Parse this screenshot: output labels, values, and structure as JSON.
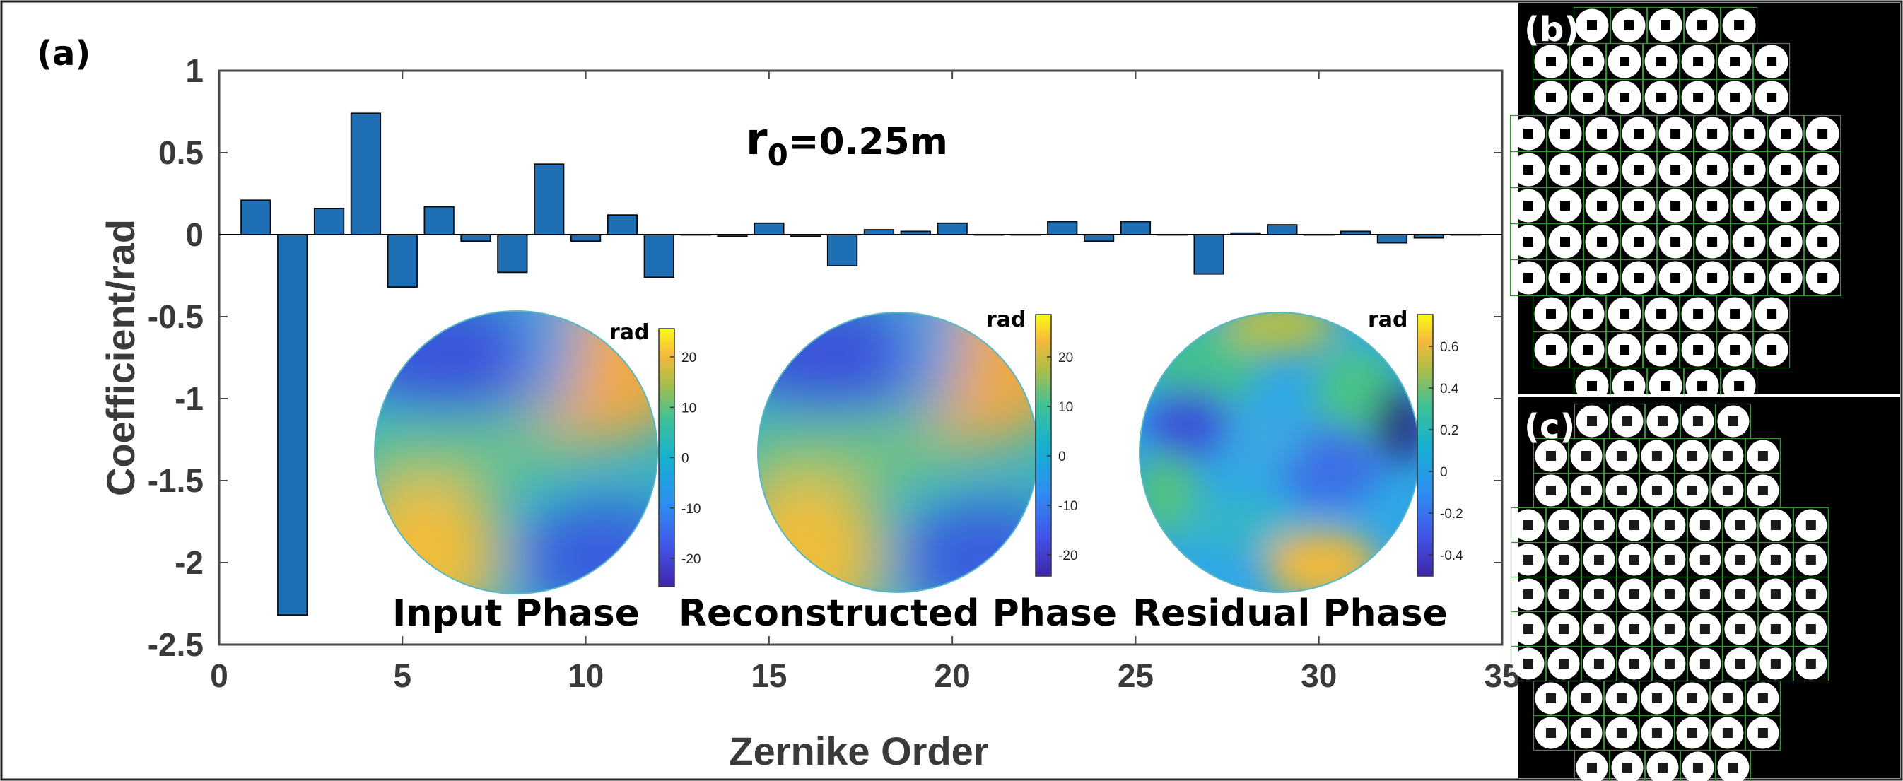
{
  "panel_labels": {
    "a": "(a)",
    "b": "(b)",
    "c": "(c)"
  },
  "chart_data": {
    "type": "bar",
    "title": "",
    "annotation": {
      "prefix": "r",
      "subscript": "0",
      "suffix": "=0.25m"
    },
    "xlabel": "Zernike Order",
    "ylabel": "Coefficient/rad",
    "xlim": [
      0,
      35
    ],
    "ylim": [
      -2.5,
      1
    ],
    "xticks": [
      0,
      5,
      10,
      15,
      20,
      25,
      30,
      35
    ],
    "yticks": [
      -2.5,
      -2,
      -1.5,
      -1,
      -0.5,
      0,
      0.5,
      1
    ],
    "color": "#1f6fb5",
    "x": [
      1,
      2,
      3,
      4,
      5,
      6,
      7,
      8,
      9,
      10,
      11,
      12,
      13,
      14,
      15,
      16,
      17,
      18,
      19,
      20,
      21,
      22,
      23,
      24,
      25,
      26,
      27,
      28,
      29,
      30,
      31,
      32,
      33,
      34
    ],
    "values": [
      0.21,
      -2.32,
      0.16,
      0.74,
      -0.32,
      0.17,
      -0.04,
      -0.23,
      0.43,
      -0.04,
      0.12,
      -0.26,
      0.0,
      -0.01,
      0.07,
      -0.01,
      -0.19,
      0.03,
      0.02,
      0.07,
      0.0,
      0.0,
      0.08,
      -0.04,
      0.08,
      0.0,
      -0.24,
      0.01,
      0.06,
      0.0,
      0.02,
      -0.05,
      -0.02,
      0.0
    ]
  },
  "insets": [
    {
      "label": "Input Phase",
      "unit": "rad",
      "ticks": [
        "20",
        "10",
        "0",
        "-10",
        "-20"
      ]
    },
    {
      "label": "Reconstructed Phase",
      "unit": "rad",
      "ticks": [
        "20",
        "10",
        "0",
        "-10",
        "-20"
      ]
    },
    {
      "label": "Residual Phase",
      "unit": "rad",
      "ticks": [
        "0.6",
        "0.4",
        "0.2",
        "0",
        "-0.2",
        "-0.4"
      ]
    }
  ],
  "colors": {
    "bar": "#1f6fb5",
    "bar_edge": "#0b0b0b",
    "grid_green": "#3b8f3b",
    "panel_bg": "#000000"
  }
}
